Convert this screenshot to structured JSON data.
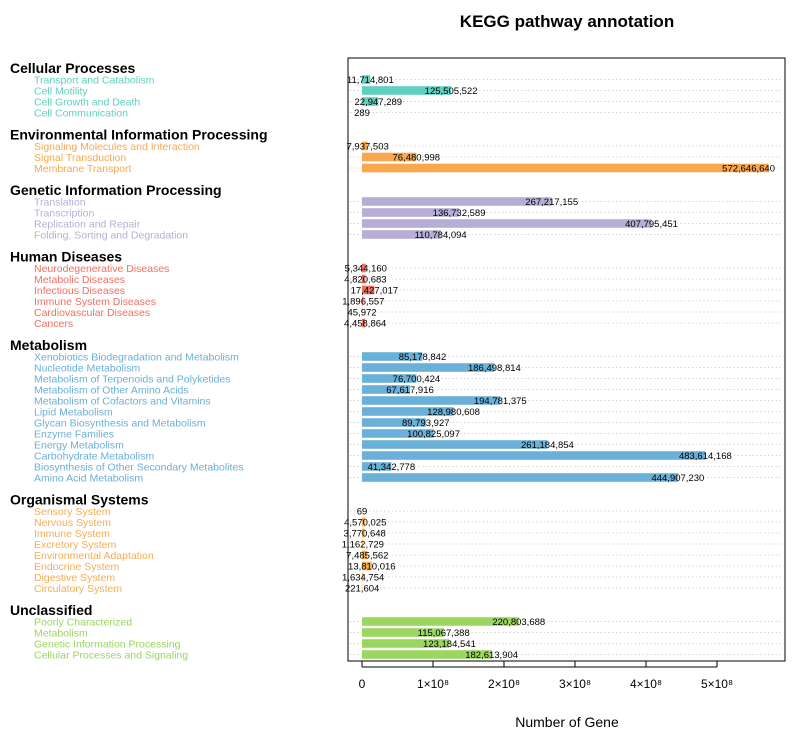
{
  "chart_data": {
    "type": "bar",
    "orientation": "horizontal",
    "title": "KEGG pathway annotation",
    "xlabel": "Number of Gene",
    "xlim": [
      0,
      580000000
    ],
    "xticks": [
      {
        "value": 0,
        "label": "0"
      },
      {
        "value": 100000000,
        "label": "1×10⁸"
      },
      {
        "value": 200000000,
        "label": "2×10⁸"
      },
      {
        "value": 300000000,
        "label": "3×10⁸"
      },
      {
        "value": 400000000,
        "label": "4×10⁸"
      },
      {
        "value": 500000000,
        "label": "5×10⁸"
      }
    ],
    "grid": "dotted horizontal row lines",
    "groups": [
      {
        "name": "Cellular Processes",
        "color": "#5fd0c0",
        "items": [
          {
            "label": "Transport and Catabolism",
            "value": 11714801,
            "value_label": "11,714,801"
          },
          {
            "label": "Cell Motility",
            "value": 125505522,
            "value_label": "125,505,522"
          },
          {
            "label": "Cell Growth and Death",
            "value": 22947289,
            "value_label": "22,947,289"
          },
          {
            "label": "Cell Communication",
            "value": 289,
            "value_label": "289"
          }
        ]
      },
      {
        "name": "Environmental Information Processing",
        "color": "#f7a84f",
        "items": [
          {
            "label": "Signaling Molecules and Interaction",
            "value": 7937503,
            "value_label": "7,937,503"
          },
          {
            "label": "Signal Transduction",
            "value": 76480998,
            "value_label": "76,480,998"
          },
          {
            "label": "Membrane Transport",
            "value": 572646640,
            "value_label": "572,646,640"
          }
        ]
      },
      {
        "name": "Genetic Information Processing",
        "color": "#b7aed6",
        "items": [
          {
            "label": "Translation",
            "value": 267217155,
            "value_label": "267,217,155"
          },
          {
            "label": "Transcription",
            "value": 136732589,
            "value_label": "136,732,589"
          },
          {
            "label": "Replication and Repair",
            "value": 407795451,
            "value_label": "407,795,451"
          },
          {
            "label": "Folding, Sorting and Degradation",
            "value": 110784094,
            "value_label": "110,784,094"
          }
        ]
      },
      {
        "name": "Human Diseases",
        "color": "#f0705f",
        "items": [
          {
            "label": "Neurodegenerative Diseases",
            "value": 5344160,
            "value_label": "5,344,160"
          },
          {
            "label": "Metabolic Diseases",
            "value": 4820683,
            "value_label": "4,820,683"
          },
          {
            "label": "Infectious Diseases",
            "value": 17427017,
            "value_label": "17,427,017"
          },
          {
            "label": "Immune System Diseases",
            "value": 1896557,
            "value_label": "1,896,557"
          },
          {
            "label": "Cardiovascular Diseases",
            "value": 45972,
            "value_label": "45,972"
          },
          {
            "label": "Cancers",
            "value": 4458864,
            "value_label": "4,458,864"
          }
        ]
      },
      {
        "name": "Metabolism",
        "color": "#6ab0d8",
        "items": [
          {
            "label": "Xenobiotics Biodegradation and Metabolism",
            "value": 85178842,
            "value_label": "85,178,842"
          },
          {
            "label": "Nucleotide Metabolism",
            "value": 186498814,
            "value_label": "186,498,814"
          },
          {
            "label": "Metabolism of Terpenoids and Polyketides",
            "value": 76700424,
            "value_label": "76,700,424"
          },
          {
            "label": "Metabolism of Other Amino Acids",
            "value": 67617916,
            "value_label": "67,617,916"
          },
          {
            "label": "Metabolism of Cofactors and Vitamins",
            "value": 194781375,
            "value_label": "194,781,375"
          },
          {
            "label": "Lipid Metabolism",
            "value": 128980608,
            "value_label": "128,980,608"
          },
          {
            "label": "Glycan Biosynthesis and Metabolism",
            "value": 89793927,
            "value_label": "89,793,927"
          },
          {
            "label": "Enzyme Families",
            "value": 100825097,
            "value_label": "100,825,097"
          },
          {
            "label": "Energy Metabolism",
            "value": 261184854,
            "value_label": "261,184,854"
          },
          {
            "label": "Carbohydrate Metabolism",
            "value": 483614168,
            "value_label": "483,614,168"
          },
          {
            "label": "Biosynthesis of Other Secondary Metabolites",
            "value": 41342778,
            "value_label": "41,342,778"
          },
          {
            "label": "Amino Acid Metabolism",
            "value": 444907230,
            "value_label": "444,907,230"
          }
        ]
      },
      {
        "name": "Organismal Systems",
        "color": "#f5ad55",
        "items": [
          {
            "label": "Sensory System",
            "value": 69,
            "value_label": "69"
          },
          {
            "label": "Nervous System",
            "value": 4570025,
            "value_label": "4,570,025"
          },
          {
            "label": "Immune System",
            "value": 3770648,
            "value_label": "3,770,648"
          },
          {
            "label": "Excretory System",
            "value": 1162729,
            "value_label": "1,162,729"
          },
          {
            "label": "Environmental Adaptation",
            "value": 7485562,
            "value_label": "7,485,562"
          },
          {
            "label": "Endocrine System",
            "value": 13810016,
            "value_label": "13,810,016"
          },
          {
            "label": "Digestive System",
            "value": 1634754,
            "value_label": "1,634,754"
          },
          {
            "label": "Circulatory System",
            "value": 221604,
            "value_label": "221,604"
          }
        ]
      },
      {
        "name": "Unclassified",
        "color": "#9bd661",
        "items": [
          {
            "label": "Poorly Characterized",
            "value": 220803688,
            "value_label": "220,803,688"
          },
          {
            "label": "Metabolism",
            "value": 115067388,
            "value_label": "115,067,388"
          },
          {
            "label": "Genetic Information Processing",
            "value": 123184541,
            "value_label": "123,184,541"
          },
          {
            "label": "Cellular Processes and Signaling",
            "value": 182613904,
            "value_label": "182,613,904"
          }
        ]
      }
    ]
  }
}
